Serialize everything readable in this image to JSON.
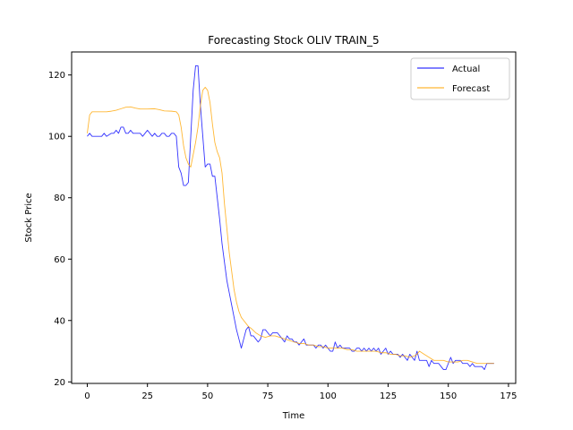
{
  "chart_data": {
    "type": "line",
    "title": "Forecasting Stock OLIV TRAIN_5",
    "xlabel": "Time",
    "ylabel": "Stock Price",
    "xlim": [
      -6.5,
      178
    ],
    "ylim": [
      19.5,
      127.5
    ],
    "xticks": [
      0,
      25,
      50,
      75,
      100,
      125,
      150,
      175
    ],
    "yticks": [
      20,
      40,
      60,
      80,
      100,
      120
    ],
    "grid": false,
    "legend": "top-right",
    "series": [
      {
        "name": "Actual",
        "color": "#0000ff",
        "points": [
          [
            0,
            100
          ],
          [
            1,
            101
          ],
          [
            2,
            100
          ],
          [
            4,
            100
          ],
          [
            6,
            100
          ],
          [
            7,
            101
          ],
          [
            8,
            100
          ],
          [
            10,
            101
          ],
          [
            11,
            101
          ],
          [
            12,
            102
          ],
          [
            13,
            101
          ],
          [
            14,
            103
          ],
          [
            15,
            103
          ],
          [
            16,
            101
          ],
          [
            17,
            101
          ],
          [
            18,
            102
          ],
          [
            19,
            101
          ],
          [
            21,
            101
          ],
          [
            22,
            101
          ],
          [
            23,
            100
          ],
          [
            24,
            101
          ],
          [
            25,
            102
          ],
          [
            26,
            101
          ],
          [
            27,
            100
          ],
          [
            28,
            101
          ],
          [
            29,
            100
          ],
          [
            30,
            100
          ],
          [
            31,
            101
          ],
          [
            32,
            101
          ],
          [
            33,
            100
          ],
          [
            34,
            100
          ],
          [
            35,
            101
          ],
          [
            36,
            101
          ],
          [
            37,
            100
          ],
          [
            38,
            90
          ],
          [
            39,
            88
          ],
          [
            40,
            84
          ],
          [
            41,
            84
          ],
          [
            42,
            85
          ],
          [
            43,
            100
          ],
          [
            44,
            115
          ],
          [
            45,
            123
          ],
          [
            46,
            123
          ],
          [
            47,
            110
          ],
          [
            48,
            100
          ],
          [
            49,
            90
          ],
          [
            50,
            91
          ],
          [
            51,
            91
          ],
          [
            52,
            87
          ],
          [
            53,
            87
          ],
          [
            54,
            80
          ],
          [
            55,
            73
          ],
          [
            56,
            65
          ],
          [
            57,
            59
          ],
          [
            58,
            53
          ],
          [
            59,
            49
          ],
          [
            60,
            45
          ],
          [
            61,
            41
          ],
          [
            62,
            37
          ],
          [
            63,
            34
          ],
          [
            64,
            31
          ],
          [
            65,
            34
          ],
          [
            66,
            37
          ],
          [
            67,
            38
          ],
          [
            68,
            35
          ],
          [
            69,
            35
          ],
          [
            70,
            34
          ],
          [
            71,
            33
          ],
          [
            72,
            34
          ],
          [
            73,
            37
          ],
          [
            74,
            37
          ],
          [
            75,
            36
          ],
          [
            76,
            35
          ],
          [
            77,
            36
          ],
          [
            78,
            36
          ],
          [
            79,
            36
          ],
          [
            80,
            35
          ],
          [
            81,
            34
          ],
          [
            82,
            33
          ],
          [
            83,
            35
          ],
          [
            84,
            34
          ],
          [
            85,
            34
          ],
          [
            86,
            33
          ],
          [
            87,
            33
          ],
          [
            88,
            32
          ],
          [
            89,
            33
          ],
          [
            90,
            34
          ],
          [
            91,
            32
          ],
          [
            92,
            32
          ],
          [
            93,
            32
          ],
          [
            94,
            32
          ],
          [
            95,
            31
          ],
          [
            96,
            32
          ],
          [
            97,
            32
          ],
          [
            98,
            31
          ],
          [
            99,
            32
          ],
          [
            100,
            31
          ],
          [
            101,
            30
          ],
          [
            102,
            30
          ],
          [
            103,
            33
          ],
          [
            104,
            31
          ],
          [
            105,
            32
          ],
          [
            106,
            31
          ],
          [
            107,
            31
          ],
          [
            108,
            31
          ],
          [
            109,
            31
          ],
          [
            110,
            30
          ],
          [
            111,
            30
          ],
          [
            112,
            31
          ],
          [
            113,
            31
          ],
          [
            114,
            30
          ],
          [
            115,
            31
          ],
          [
            116,
            30
          ],
          [
            117,
            31
          ],
          [
            118,
            30
          ],
          [
            119,
            31
          ],
          [
            120,
            30
          ],
          [
            121,
            31
          ],
          [
            122,
            29
          ],
          [
            123,
            30
          ],
          [
            124,
            31
          ],
          [
            125,
            29
          ],
          [
            126,
            30
          ],
          [
            127,
            29
          ],
          [
            128,
            29
          ],
          [
            129,
            29
          ],
          [
            130,
            28
          ],
          [
            131,
            29
          ],
          [
            132,
            28
          ],
          [
            133,
            27
          ],
          [
            134,
            29
          ],
          [
            135,
            28
          ],
          [
            136,
            27
          ],
          [
            137,
            30
          ],
          [
            138,
            27
          ],
          [
            139,
            27
          ],
          [
            140,
            27
          ],
          [
            141,
            27
          ],
          [
            142,
            25
          ],
          [
            143,
            27
          ],
          [
            144,
            26
          ],
          [
            145,
            26
          ],
          [
            146,
            26
          ],
          [
            147,
            25
          ],
          [
            148,
            24
          ],
          [
            149,
            24
          ],
          [
            150,
            26
          ],
          [
            151,
            28
          ],
          [
            152,
            26
          ],
          [
            153,
            27
          ],
          [
            154,
            27
          ],
          [
            155,
            27
          ],
          [
            156,
            26
          ],
          [
            157,
            26
          ],
          [
            158,
            26
          ],
          [
            159,
            25
          ],
          [
            160,
            26
          ],
          [
            161,
            25
          ],
          [
            162,
            25
          ],
          [
            163,
            25
          ],
          [
            164,
            25
          ],
          [
            165,
            24
          ],
          [
            166,
            26
          ],
          [
            167,
            26
          ],
          [
            168,
            26
          ],
          [
            169,
            26
          ]
        ]
      },
      {
        "name": "Forecast",
        "color": "#ffa500",
        "points": [
          [
            0,
            101
          ],
          [
            1,
            107
          ],
          [
            2,
            108
          ],
          [
            4,
            108
          ],
          [
            6,
            108
          ],
          [
            8,
            108
          ],
          [
            10,
            108.2
          ],
          [
            12,
            108.5
          ],
          [
            14,
            109
          ],
          [
            16,
            109.5
          ],
          [
            18,
            109.6
          ],
          [
            20,
            109.2
          ],
          [
            22,
            108.9
          ],
          [
            25,
            108.9
          ],
          [
            28,
            109
          ],
          [
            30,
            108.7
          ],
          [
            32,
            108.3
          ],
          [
            35,
            108.2
          ],
          [
            37,
            108
          ],
          [
            38,
            107
          ],
          [
            39,
            103
          ],
          [
            40,
            97
          ],
          [
            41,
            93
          ],
          [
            42,
            91
          ],
          [
            43,
            90
          ],
          [
            44,
            94
          ],
          [
            45,
            98
          ],
          [
            46,
            103
          ],
          [
            47,
            110
          ],
          [
            48,
            115
          ],
          [
            49,
            116
          ],
          [
            50,
            115
          ],
          [
            51,
            111
          ],
          [
            52,
            104
          ],
          [
            53,
            98
          ],
          [
            54,
            95
          ],
          [
            55,
            93
          ],
          [
            56,
            88
          ],
          [
            57,
            78
          ],
          [
            58,
            70
          ],
          [
            59,
            62
          ],
          [
            60,
            56
          ],
          [
            61,
            50
          ],
          [
            62,
            46
          ],
          [
            63,
            43
          ],
          [
            64,
            41
          ],
          [
            65,
            40
          ],
          [
            66,
            39
          ],
          [
            67,
            38
          ],
          [
            68,
            37.5
          ],
          [
            70,
            36
          ],
          [
            72,
            35
          ],
          [
            74,
            34.5
          ],
          [
            76,
            35
          ],
          [
            78,
            35
          ],
          [
            80,
            34.5
          ],
          [
            82,
            34
          ],
          [
            84,
            33.5
          ],
          [
            86,
            33
          ],
          [
            88,
            32.5
          ],
          [
            90,
            32.5
          ],
          [
            92,
            32
          ],
          [
            94,
            32
          ],
          [
            96,
            31.5
          ],
          [
            98,
            31.5
          ],
          [
            100,
            31
          ],
          [
            102,
            31
          ],
          [
            104,
            31
          ],
          [
            106,
            31
          ],
          [
            108,
            30.5
          ],
          [
            110,
            30.5
          ],
          [
            112,
            30
          ],
          [
            114,
            30
          ],
          [
            116,
            30
          ],
          [
            118,
            30
          ],
          [
            120,
            30
          ],
          [
            122,
            29.5
          ],
          [
            124,
            29.5
          ],
          [
            126,
            29
          ],
          [
            128,
            29
          ],
          [
            130,
            28.5
          ],
          [
            132,
            28.5
          ],
          [
            134,
            28
          ],
          [
            136,
            28.5
          ],
          [
            137,
            29
          ],
          [
            138,
            30
          ],
          [
            140,
            29
          ],
          [
            142,
            28
          ],
          [
            144,
            27
          ],
          [
            146,
            27
          ],
          [
            148,
            27
          ],
          [
            150,
            26.5
          ],
          [
            152,
            26.5
          ],
          [
            154,
            26.5
          ],
          [
            156,
            27
          ],
          [
            158,
            27
          ],
          [
            160,
            26.5
          ],
          [
            162,
            26
          ],
          [
            164,
            26
          ],
          [
            166,
            26
          ],
          [
            168,
            26
          ],
          [
            169,
            26
          ]
        ]
      }
    ]
  }
}
